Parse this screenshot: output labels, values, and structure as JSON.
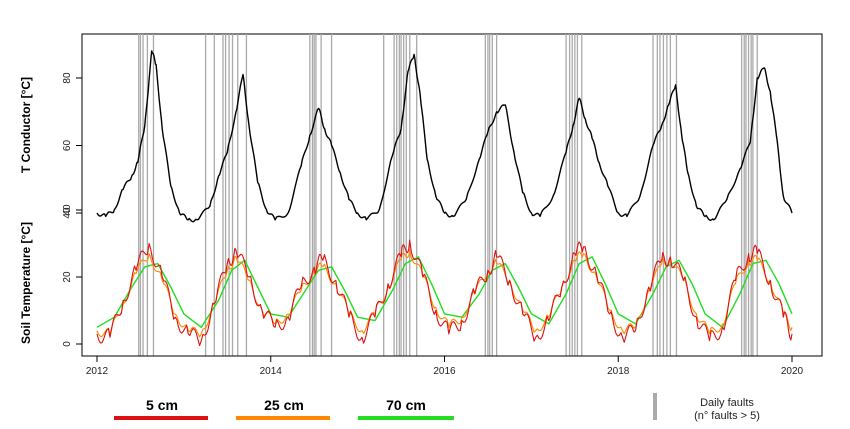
{
  "chart_data": {
    "type": "line",
    "x_range": [
      2012,
      2020
    ],
    "x_ticks": [
      "2012",
      "2014",
      "2016",
      "2018",
      "2020"
    ],
    "top_panel": {
      "ylabel": "T Conductor [°C]",
      "y_ticks": [
        40,
        60,
        80
      ],
      "ylim": [
        34,
        92
      ],
      "series": [
        {
          "color": "#000000",
          "x": [
            2012.0,
            2012.1,
            2012.2,
            2012.3,
            2012.4,
            2012.47,
            2012.55,
            2012.63,
            2012.68,
            2012.75,
            2012.85,
            2012.95,
            2013.05,
            2013.15,
            2013.3,
            2013.4,
            2013.5,
            2013.6,
            2013.68,
            2013.75,
            2013.85,
            2013.95,
            2014.05,
            2014.2,
            2014.35,
            2014.45,
            2014.55,
            2014.62,
            2014.7,
            2014.8,
            2014.9,
            2015.0,
            2015.1,
            2015.25,
            2015.4,
            2015.5,
            2015.58,
            2015.65,
            2015.72,
            2015.8,
            2015.9,
            2016.0,
            2016.1,
            2016.25,
            2016.4,
            2016.5,
            2016.6,
            2016.7,
            2016.8,
            2016.9,
            2017.0,
            2017.1,
            2017.25,
            2017.4,
            2017.48,
            2017.55,
            2017.62,
            2017.7,
            2017.78,
            2017.88,
            2018.0,
            2018.1,
            2018.25,
            2018.4,
            2018.5,
            2018.58,
            2018.66,
            2018.73,
            2018.8,
            2018.9,
            2019.0,
            2019.1,
            2019.25,
            2019.4,
            2019.52,
            2019.6,
            2019.68,
            2019.75,
            2019.82,
            2019.9,
            2020.0
          ],
          "y": [
            40,
            39,
            41,
            47,
            51,
            55,
            66,
            88,
            84,
            65,
            48,
            40,
            38,
            38,
            42,
            51,
            58,
            70,
            81,
            66,
            49,
            41,
            38,
            40,
            54,
            63,
            71,
            65,
            60,
            52,
            44,
            40,
            38,
            41,
            57,
            65,
            82,
            87,
            75,
            56,
            45,
            40,
            39,
            44,
            56,
            64,
            70,
            72,
            58,
            46,
            40,
            39,
            45,
            58,
            66,
            74,
            68,
            62,
            55,
            48,
            40,
            39,
            45,
            60,
            66,
            72,
            78,
            63,
            52,
            42,
            39,
            38,
            44,
            53,
            61,
            80,
            83,
            76,
            63,
            45,
            40
          ]
        }
      ]
    },
    "bottom_panel": {
      "ylabel": "Soil Temperature [°C]",
      "y_ticks": [
        0,
        20,
        40
      ],
      "ylim": [
        -2,
        42
      ],
      "series": [
        {
          "name": "5 cm",
          "color": "#dd1111",
          "x": [
            2012.0,
            2012.15,
            2012.3,
            2012.45,
            2012.6,
            2012.75,
            2012.9,
            2013.05,
            2013.2,
            2013.35,
            2013.5,
            2013.6,
            2013.75,
            2013.9,
            2014.05,
            2014.2,
            2014.35,
            2014.5,
            2014.6,
            2014.75,
            2014.9,
            2015.05,
            2015.2,
            2015.35,
            2015.5,
            2015.6,
            2015.75,
            2015.9,
            2016.05,
            2016.2,
            2016.35,
            2016.5,
            2016.6,
            2016.75,
            2016.9,
            2017.05,
            2017.2,
            2017.35,
            2017.5,
            2017.6,
            2017.75,
            2017.9,
            2018.05,
            2018.2,
            2018.35,
            2018.5,
            2018.6,
            2018.75,
            2018.9,
            2019.05,
            2019.2,
            2019.35,
            2019.5,
            2019.6,
            2019.75,
            2019.9,
            2020.0
          ],
          "y": [
            3,
            2,
            13,
            22,
            30,
            20,
            8,
            3,
            1,
            12,
            24,
            28,
            20,
            10,
            5,
            8,
            17,
            23,
            25,
            19,
            8,
            2,
            8,
            18,
            26,
            31,
            20,
            10,
            3,
            7,
            15,
            22,
            26,
            19,
            9,
            2,
            7,
            17,
            27,
            29,
            21,
            9,
            2,
            4,
            17,
            25,
            26,
            19,
            8,
            1,
            5,
            19,
            27,
            27,
            19,
            8,
            3
          ]
        },
        {
          "name": "25 cm",
          "color": "#ff8800",
          "x": [
            2012.0,
            2012.15,
            2012.3,
            2012.45,
            2012.6,
            2012.75,
            2012.9,
            2013.05,
            2013.2,
            2013.35,
            2013.5,
            2013.6,
            2013.75,
            2013.9,
            2014.05,
            2014.2,
            2014.35,
            2014.5,
            2014.6,
            2014.75,
            2014.9,
            2015.05,
            2015.2,
            2015.35,
            2015.5,
            2015.6,
            2015.75,
            2015.9,
            2016.05,
            2016.2,
            2016.35,
            2016.5,
            2016.6,
            2016.75,
            2016.9,
            2017.05,
            2017.2,
            2017.35,
            2017.5,
            2017.6,
            2017.75,
            2017.9,
            2018.05,
            2018.2,
            2018.35,
            2018.5,
            2018.6,
            2018.75,
            2018.9,
            2019.05,
            2019.2,
            2019.35,
            2019.5,
            2019.6,
            2019.75,
            2019.9,
            2020.0
          ],
          "y": [
            4,
            3,
            12,
            21,
            27,
            19,
            9,
            4,
            3,
            12,
            22,
            26,
            19,
            10,
            6,
            9,
            16,
            22,
            23,
            18,
            9,
            4,
            9,
            17,
            25,
            28,
            20,
            11,
            5,
            8,
            15,
            22,
            24,
            19,
            10,
            4,
            8,
            17,
            25,
            27,
            20,
            10,
            4,
            5,
            16,
            24,
            25,
            19,
            9,
            3,
            6,
            18,
            25,
            25,
            19,
            9,
            5
          ]
        },
        {
          "name": "70 cm",
          "color": "#22dd22",
          "x": [
            2012.0,
            2012.2,
            2012.4,
            2012.55,
            2012.7,
            2012.85,
            2013.0,
            2013.2,
            2013.4,
            2013.55,
            2013.7,
            2013.85,
            2014.0,
            2014.2,
            2014.4,
            2014.55,
            2014.7,
            2014.85,
            2015.0,
            2015.2,
            2015.4,
            2015.55,
            2015.7,
            2015.85,
            2016.0,
            2016.2,
            2016.4,
            2016.55,
            2016.7,
            2016.85,
            2017.0,
            2017.2,
            2017.4,
            2017.55,
            2017.7,
            2017.85,
            2018.0,
            2018.2,
            2018.4,
            2018.55,
            2018.7,
            2018.85,
            2019.0,
            2019.2,
            2019.4,
            2019.55,
            2019.7,
            2019.85,
            2020.0
          ],
          "y": [
            5,
            8,
            17,
            23,
            24,
            17,
            9,
            5,
            13,
            22,
            25,
            17,
            9,
            8,
            16,
            22,
            23,
            16,
            8,
            7,
            16,
            24,
            26,
            18,
            9,
            8,
            15,
            22,
            24,
            17,
            9,
            6,
            15,
            24,
            26,
            18,
            9,
            6,
            15,
            23,
            25,
            18,
            9,
            5,
            15,
            24,
            25,
            18,
            9
          ]
        }
      ]
    },
    "fault_years": [
      2012.48,
      2012.5,
      2012.53,
      2012.58,
      2012.65,
      2013.25,
      2013.35,
      2013.45,
      2013.48,
      2013.52,
      2013.56,
      2013.62,
      2013.72,
      2014.45,
      2014.48,
      2014.5,
      2014.52,
      2014.58,
      2014.7,
      2015.3,
      2015.42,
      2015.45,
      2015.48,
      2015.5,
      2015.53,
      2015.56,
      2015.6,
      2015.68,
      2016.47,
      2016.5,
      2016.52,
      2016.55,
      2016.6,
      2017.4,
      2017.44,
      2017.47,
      2017.5,
      2017.53,
      2017.58,
      2018.4,
      2018.45,
      2018.48,
      2018.52,
      2018.56,
      2018.6,
      2018.67,
      2019.42,
      2019.45,
      2019.47,
      2019.5,
      2019.53,
      2019.55,
      2019.6
    ],
    "legend": {
      "items": [
        {
          "label": "5 cm",
          "color": "#dd1111"
        },
        {
          "label": "25 cm",
          "color": "#ff8800"
        },
        {
          "label": "70 cm",
          "color": "#22dd22"
        }
      ],
      "fault_label_line1": "Daily faults",
      "fault_label_line2": "(n° faults > 5)",
      "fault_color": "#aaaaaa"
    },
    "grid": false
  }
}
